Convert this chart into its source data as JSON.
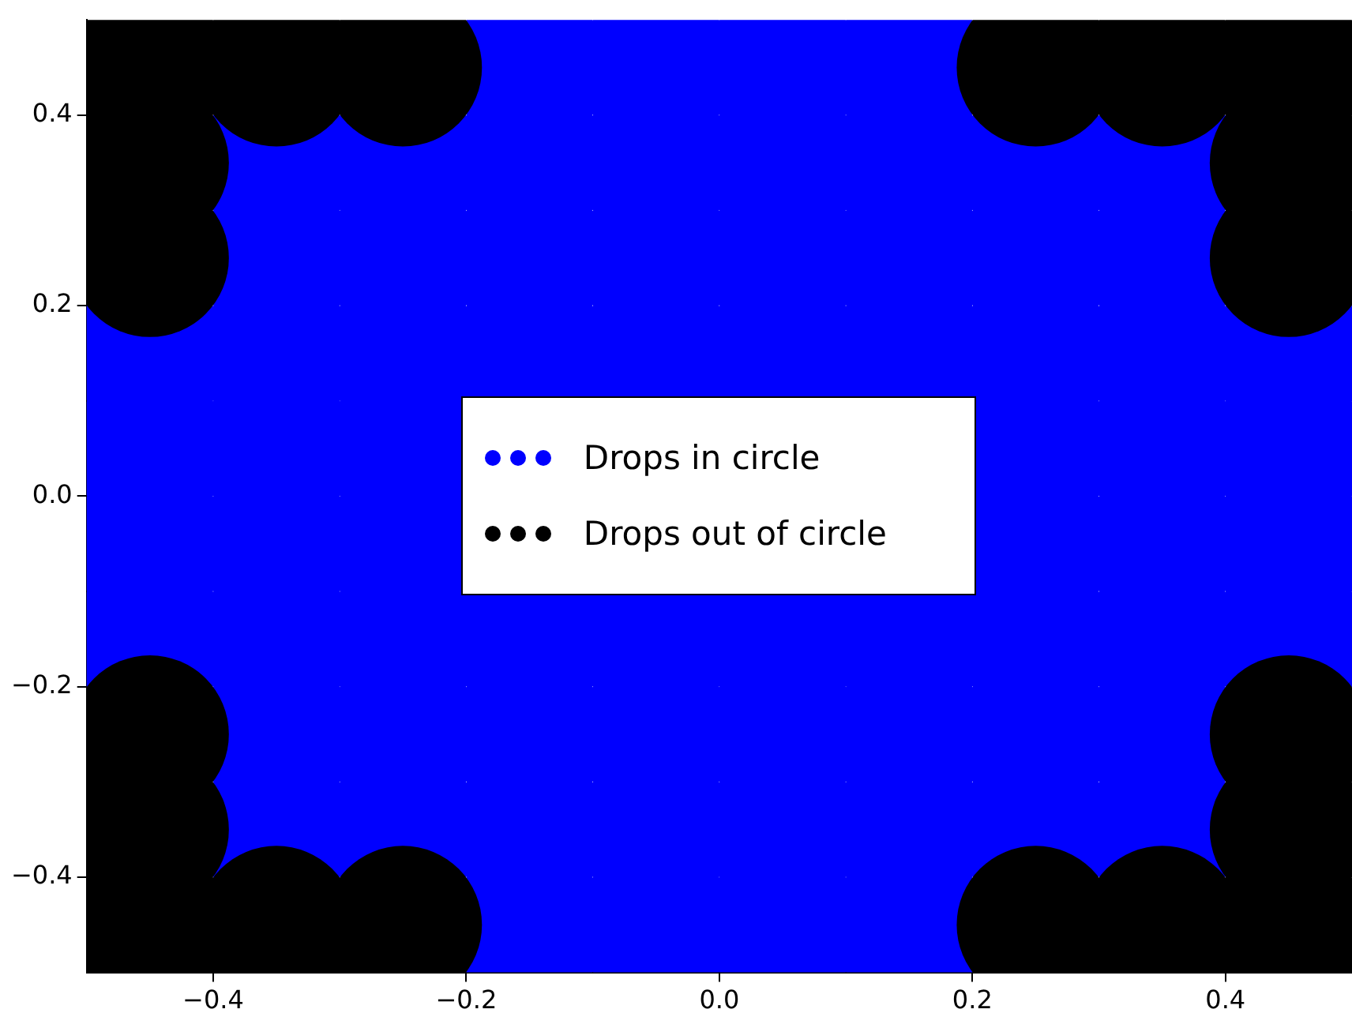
{
  "chart_data": {
    "type": "scatter",
    "xlim": [
      -0.5,
      0.5
    ],
    "ylim": [
      -0.5,
      0.5
    ],
    "xticks": [
      -0.4,
      -0.2,
      {
        "value": 0,
        "label": "0.0"
      },
      0.2,
      0.4
    ],
    "yticks": [
      -0.4,
      -0.2,
      {
        "value": 0,
        "label": "0.0"
      },
      0.2,
      0.4
    ],
    "legend": "center",
    "marker": "circle",
    "series": [
      {
        "name": "Drops in circle",
        "color": "#0000ff",
        "x": [
          -0.45,
          -0.45,
          -0.45,
          -0.45,
          -0.35,
          -0.35,
          -0.35,
          -0.35,
          -0.35,
          -0.35,
          -0.35,
          -0.35,
          -0.25,
          -0.25,
          -0.25,
          -0.25,
          -0.25,
          -0.25,
          -0.25,
          -0.25,
          -0.15,
          -0.15,
          -0.15,
          -0.15,
          -0.15,
          -0.15,
          -0.15,
          -0.15,
          -0.05,
          -0.05,
          -0.05,
          -0.05,
          -0.05,
          -0.05,
          -0.05,
          -0.05,
          0.05,
          0.05,
          0.05,
          0.05,
          0.05,
          0.05,
          0.05,
          0.05,
          0.15,
          0.15,
          0.15,
          0.15,
          0.15,
          0.15,
          0.15,
          0.15,
          0.25,
          0.25,
          0.25,
          0.25,
          0.25,
          0.25,
          0.25,
          0.25,
          0.35,
          0.35,
          0.35,
          0.35,
          0.35,
          0.35,
          0.35,
          0.35,
          0.45,
          0.45,
          0.45,
          0.45
        ],
        "values": [
          -0.15,
          -0.05,
          0.05,
          0.15,
          -0.35,
          -0.25,
          -0.15,
          -0.05,
          0.05,
          0.15,
          0.25,
          0.35,
          -0.35,
          -0.25,
          -0.15,
          -0.05,
          0.05,
          0.15,
          0.25,
          0.35,
          -0.45,
          -0.35,
          -0.25,
          -0.15,
          0.15,
          0.25,
          0.35,
          0.45,
          -0.45,
          -0.35,
          -0.25,
          -0.15,
          0.15,
          0.25,
          0.35,
          0.45,
          -0.45,
          -0.35,
          -0.25,
          -0.15,
          0.15,
          0.25,
          0.35,
          0.45,
          -0.45,
          -0.35,
          -0.25,
          -0.15,
          0.15,
          0.25,
          0.35,
          0.45,
          -0.35,
          -0.25,
          -0.15,
          -0.05,
          0.05,
          0.15,
          0.25,
          0.35,
          -0.35,
          -0.25,
          -0.15,
          -0.05,
          0.05,
          0.15,
          0.25,
          0.35,
          -0.15,
          -0.05,
          0.05,
          0.15
        ]
      },
      {
        "name": "Drops out of circle",
        "color": "#000000",
        "x": [
          -0.45,
          -0.45,
          -0.45,
          -0.45,
          -0.45,
          -0.45,
          -0.35,
          -0.35,
          -0.25,
          -0.25,
          0.25,
          0.25,
          0.35,
          0.35,
          0.45,
          0.45,
          0.45,
          0.45,
          0.45,
          0.45
        ],
        "values": [
          -0.45,
          -0.35,
          -0.25,
          0.25,
          0.35,
          0.45,
          -0.45,
          0.45,
          -0.45,
          0.45,
          -0.45,
          0.45,
          -0.45,
          0.45,
          -0.45,
          -0.35,
          -0.25,
          0.25,
          0.35,
          0.45
        ]
      }
    ]
  }
}
